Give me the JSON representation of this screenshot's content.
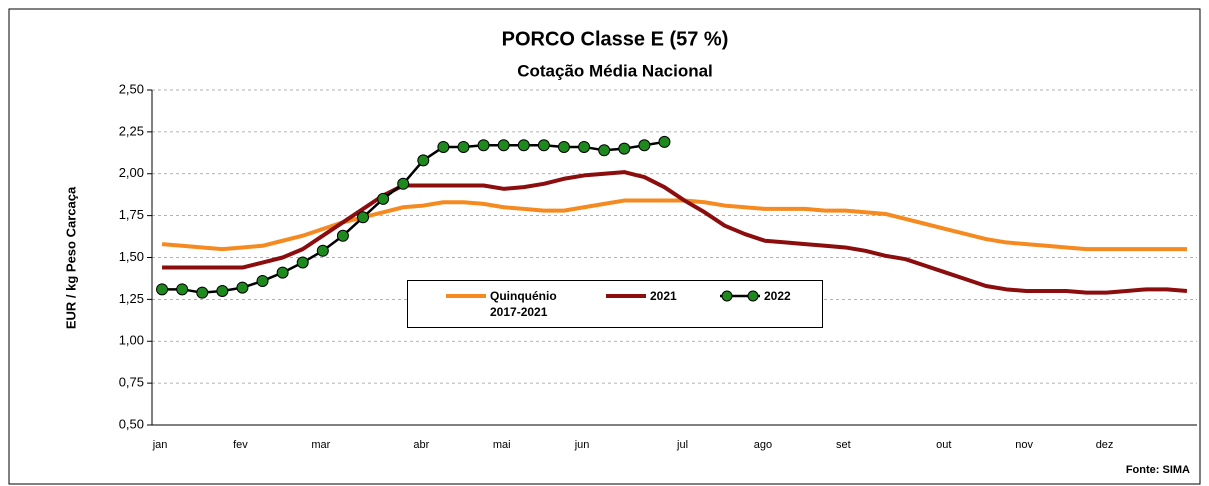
{
  "chart_data": {
    "type": "line",
    "title": "PORCO Classe E (57 %)",
    "subtitle": "Cotação Média Nacional",
    "y_label": "EUR / kg Peso Carcaça",
    "source": "Fonte: SIMA",
    "categories": [
      "jan",
      null,
      null,
      null,
      "fev",
      null,
      null,
      null,
      "mar",
      null,
      null,
      null,
      null,
      "abr",
      null,
      null,
      null,
      "mai",
      null,
      null,
      null,
      "jun",
      null,
      null,
      null,
      null,
      "jul",
      null,
      null,
      null,
      "ago",
      null,
      null,
      null,
      "set",
      null,
      null,
      null,
      null,
      "out",
      null,
      null,
      null,
      "nov",
      null,
      null,
      null,
      "dez",
      null,
      null,
      null,
      null
    ],
    "ylim": [
      0.5,
      2.5
    ],
    "yticks": [
      {
        "value": 0.5,
        "label": "0,50"
      },
      {
        "value": 0.75,
        "label": "0,75"
      },
      {
        "value": 1.0,
        "label": "1,00"
      },
      {
        "value": 1.25,
        "label": "1,25"
      },
      {
        "value": 1.5,
        "label": "1,50"
      },
      {
        "value": 1.75,
        "label": "1,75"
      },
      {
        "value": 2.0,
        "label": "2,00"
      },
      {
        "value": 2.25,
        "label": "2,25"
      },
      {
        "value": 2.5,
        "label": "2,50"
      }
    ],
    "grid": true,
    "series": [
      {
        "name": "Quinquénio 2017-2021",
        "color": "#f58a20",
        "markers": false,
        "values": [
          1.58,
          1.57,
          1.56,
          1.55,
          1.56,
          1.57,
          1.6,
          1.63,
          1.67,
          1.71,
          1.74,
          1.77,
          1.8,
          1.81,
          1.83,
          1.83,
          1.82,
          1.8,
          1.79,
          1.78,
          1.78,
          1.8,
          1.82,
          1.84,
          1.84,
          1.84,
          1.84,
          1.83,
          1.81,
          1.8,
          1.79,
          1.79,
          1.79,
          1.78,
          1.78,
          1.77,
          1.76,
          1.73,
          1.7,
          1.67,
          1.64,
          1.61,
          1.59,
          1.58,
          1.57,
          1.56,
          1.55,
          1.55,
          1.55,
          1.55,
          1.55,
          1.55
        ]
      },
      {
        "name": "2021",
        "color": "#8b0d0d",
        "markers": false,
        "values": [
          1.44,
          1.44,
          1.44,
          1.44,
          1.44,
          1.47,
          1.5,
          1.55,
          1.63,
          1.71,
          1.79,
          1.87,
          1.93,
          1.93,
          1.93,
          1.93,
          1.93,
          1.91,
          1.92,
          1.94,
          1.97,
          1.99,
          2.0,
          2.01,
          1.98,
          1.92,
          1.84,
          1.77,
          1.69,
          1.64,
          1.6,
          1.59,
          1.58,
          1.57,
          1.56,
          1.54,
          1.51,
          1.49,
          1.45,
          1.41,
          1.37,
          1.33,
          1.31,
          1.3,
          1.3,
          1.3,
          1.29,
          1.29,
          1.3,
          1.31,
          1.31,
          1.3
        ]
      },
      {
        "name": "2022",
        "color": "#000000",
        "marker_color": "#1e8a1e",
        "markers": true,
        "values": [
          1.31,
          1.31,
          1.29,
          1.3,
          1.32,
          1.36,
          1.41,
          1.47,
          1.54,
          1.63,
          1.74,
          1.85,
          1.94,
          2.08,
          2.16,
          2.16,
          2.17,
          2.17,
          2.17,
          2.17,
          2.16,
          2.16,
          2.14,
          2.15,
          2.17,
          2.19,
          null,
          null,
          null,
          null,
          null,
          null,
          null,
          null,
          null,
          null,
          null,
          null,
          null,
          null,
          null,
          null,
          null,
          null,
          null,
          null,
          null,
          null,
          null,
          null,
          null,
          null
        ]
      }
    ]
  }
}
